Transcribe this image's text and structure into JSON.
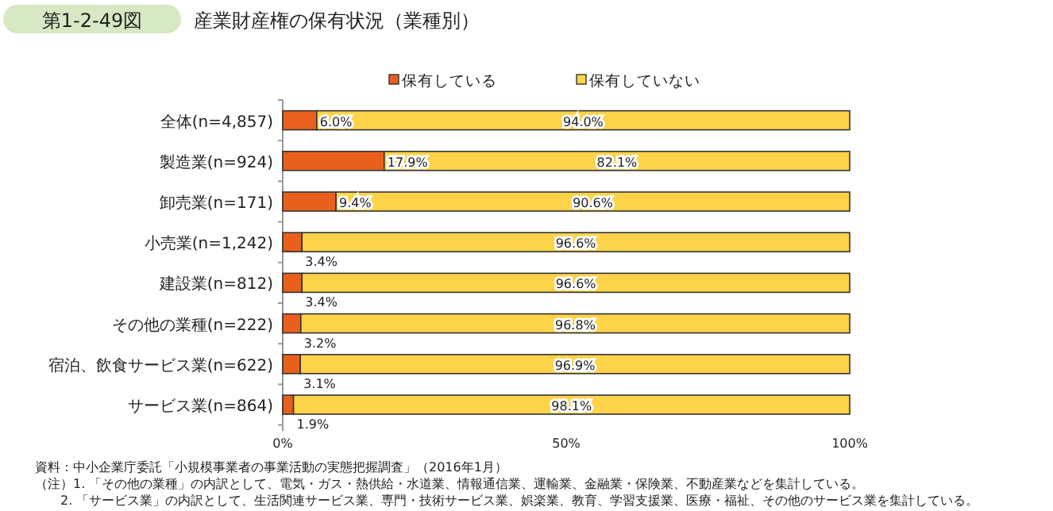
{
  "chart_data": {
    "type": "bar",
    "orientation": "horizontal",
    "stacked": true,
    "title": "産業財産権の保有状況（業種別）",
    "subtitle": "第1-2-49図",
    "categories": [
      "全体(n=4,857)",
      "製造業(n=924)",
      "卸売業(n=171)",
      "小売業(n=1,242)",
      "建設業(n=812)",
      "その他の業種(n=222)",
      "宿泊、飲食サービス業(n=622)",
      "サービス業(n=864)"
    ],
    "series": [
      {
        "name": "保有している",
        "color": "#e8601c",
        "values": [
          6.0,
          17.9,
          9.4,
          3.4,
          3.4,
          3.2,
          3.1,
          1.9
        ],
        "value_labels": [
          "6.0%",
          "17.9%",
          "9.4%",
          "3.4%",
          "3.4%",
          "3.2%",
          "3.1%",
          "1.9%"
        ]
      },
      {
        "name": "保有していない",
        "color": "#fdd34a",
        "values": [
          94.0,
          82.1,
          90.6,
          96.6,
          96.6,
          96.8,
          96.9,
          98.1
        ],
        "value_labels": [
          "94.0%",
          "82.1%",
          "90.6%",
          "96.6%",
          "96.6%",
          "96.8%",
          "96.9%",
          "98.1%"
        ]
      }
    ],
    "xlim": [
      0,
      100
    ],
    "xticks": [
      {
        "value": 0,
        "label": "0%"
      },
      {
        "value": 50,
        "label": "50%"
      },
      {
        "value": 100,
        "label": "100%"
      }
    ],
    "legend": "top",
    "grid": false,
    "annotations": [
      "資料：中小企業庁委託「小規模事業者の事業活動の実態把握調査」（2016年1月）",
      "（注）1. 「その他の業種」の内訳として、電気・ガス・熱供給・水道業、情報通信業、運輸業、金融業・保険業、不動産業などを集計している。",
      "2. 「サービス業」の内訳として、生活関連サービス業、専門・技術サービス業、娯楽業、教育、学習支援業、医療・福祉、その他のサービス業を集計している。"
    ]
  }
}
